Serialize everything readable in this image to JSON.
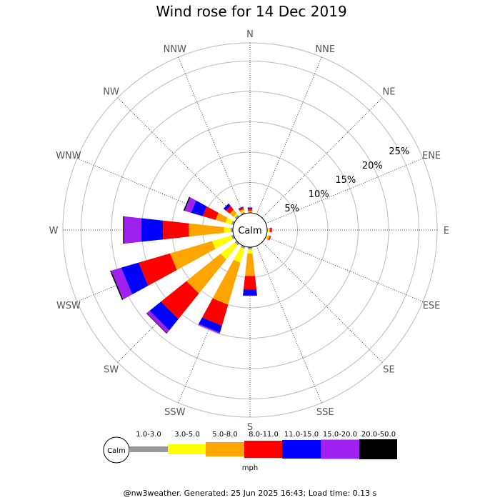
{
  "chart_data": {
    "type": "wind-rose",
    "title": "Wind rose for 14 Dec 2019",
    "directions": [
      "N",
      "NNE",
      "NE",
      "ENE",
      "E",
      "ESE",
      "SE",
      "SSE",
      "S",
      "SSW",
      "SW",
      "WSW",
      "W",
      "WNW",
      "NW",
      "NNW"
    ],
    "ring_labels": [
      "5%",
      "10%",
      "15%",
      "20%",
      "25%"
    ],
    "ring_values": [
      5,
      10,
      15,
      20,
      25
    ],
    "r_max": 28,
    "calm_label": "Calm",
    "unit": "mph",
    "speed_bins": [
      {
        "label": "1.0-3.0",
        "color": "#999999"
      },
      {
        "label": "3.0-5.0",
        "color": "#ffff00"
      },
      {
        "label": "5.0-8.0",
        "color": "#ffa500"
      },
      {
        "label": "8.0-11.0",
        "color": "#ff0000"
      },
      {
        "label": "11.0-15.0",
        "color": "#0000ff"
      },
      {
        "label": "15.0-20.0",
        "color": "#a020f0"
      },
      {
        "label": "20.0-50.0",
        "color": "#000000"
      }
    ],
    "series": [
      {
        "direction": "N",
        "values": [
          0.0,
          0.1,
          0.3,
          0.3,
          0.2,
          0,
          0
        ]
      },
      {
        "direction": "NNE",
        "values": [
          0,
          0,
          0,
          0,
          0,
          0,
          0
        ]
      },
      {
        "direction": "NE",
        "values": [
          0,
          0,
          0,
          0,
          0,
          0,
          0
        ]
      },
      {
        "direction": "ENE",
        "values": [
          0,
          0,
          0,
          0,
          0,
          0,
          0
        ]
      },
      {
        "direction": "E",
        "values": [
          0.1,
          0.2,
          0.2,
          0.3,
          0,
          0,
          0
        ]
      },
      {
        "direction": "ESE",
        "values": [
          0.1,
          0.2,
          0.3,
          0.2,
          0,
          0,
          0
        ]
      },
      {
        "direction": "SE",
        "values": [
          0,
          0,
          0,
          0,
          0,
          0,
          0
        ]
      },
      {
        "direction": "SSE",
        "values": [
          0,
          0,
          0,
          0,
          0,
          0,
          0
        ]
      },
      {
        "direction": "S",
        "values": [
          0.4,
          0.7,
          3.7,
          2.2,
          1.0,
          0.1,
          0
        ]
      },
      {
        "direction": "SSW",
        "values": [
          0.4,
          2.4,
          7.2,
          3.6,
          1.2,
          0.2,
          0
        ]
      },
      {
        "direction": "SW",
        "values": [
          0.4,
          3.0,
          7.2,
          5.4,
          2.4,
          0.6,
          0.1
        ]
      },
      {
        "direction": "WSW",
        "values": [
          0.4,
          3.3,
          7.2,
          5.4,
          3.0,
          1.7,
          0.2
        ]
      },
      {
        "direction": "W",
        "values": [
          0.4,
          1.1,
          5.8,
          4.3,
          3.6,
          2.8,
          0.2
        ]
      },
      {
        "direction": "WNW",
        "values": [
          0.4,
          1.0,
          1.7,
          2.2,
          2.0,
          1.1,
          0.2
        ]
      },
      {
        "direction": "NW",
        "values": [
          0.4,
          0.3,
          0.8,
          0.8,
          0.5,
          0,
          0
        ]
      },
      {
        "direction": "NNW",
        "values": [
          0.3,
          0.2,
          0.3,
          0.3,
          0.1,
          0,
          0
        ]
      }
    ]
  },
  "footer": "@nw3weather. Generated: 25 Jun 2025 16:43; Load time: 0.13 s"
}
